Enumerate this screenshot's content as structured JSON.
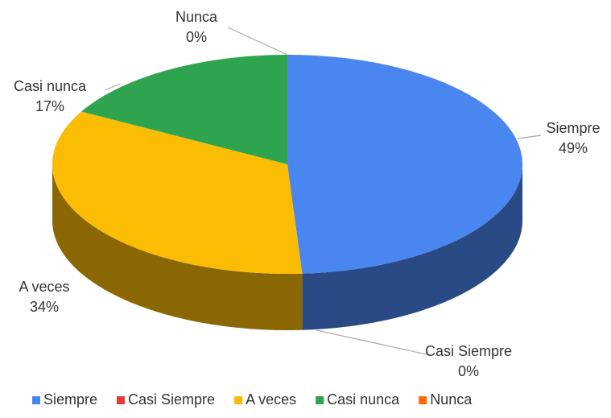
{
  "chart_data": {
    "type": "pie",
    "categories": [
      "Siempre",
      "Casi Siempre",
      "A veces",
      "Casi nunca",
      "Nunca"
    ],
    "values": [
      49,
      0,
      34,
      17,
      0
    ],
    "value_labels": [
      "49%",
      "0%",
      "34%",
      "17%",
      "0%"
    ],
    "colors": [
      "#4a86f0",
      "#e53935",
      "#fbbc04",
      "#2ea44f",
      "#ff6d00"
    ],
    "legend": "bottom"
  }
}
